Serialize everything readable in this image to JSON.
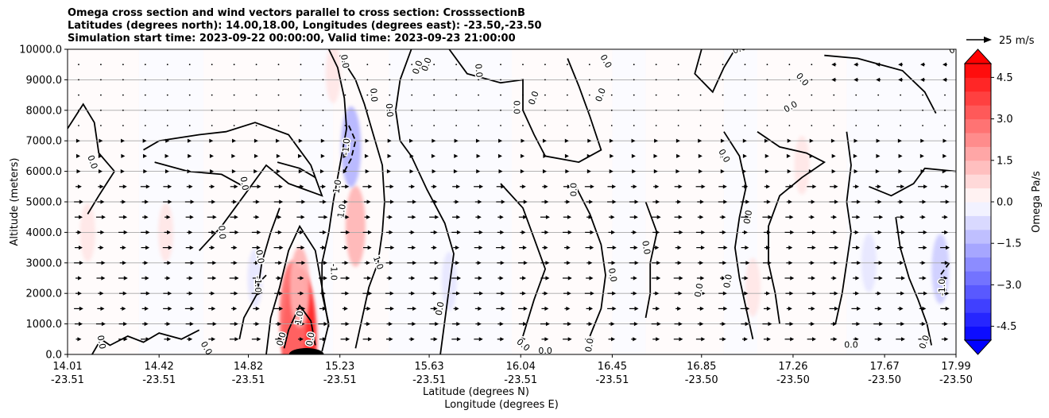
{
  "title_lines": [
    "Omega cross section and wind vectors parallel to cross section: CrosssectionB",
    "Latitudes (degrees north): 14.00,18.00, Longitudes (degrees east): -23.50,-23.50",
    "Simulation start time: 2023-09-22 00:00:00, Valid time: 2023-09-23 21:00:00"
  ],
  "chart_data": {
    "type": "contour",
    "title": "Omega cross section and wind vectors parallel to cross section: CrosssectionB",
    "ylabel": "Altitude (meters)",
    "xlabel_lines": [
      "Latitude (degrees N)",
      "Longitude (degrees E)"
    ],
    "ylim": [
      0,
      10000
    ],
    "yticks": [
      "0.0",
      "1000.0",
      "2000.0",
      "3000.0",
      "4000.0",
      "5000.0",
      "6000.0",
      "7000.0",
      "8000.0",
      "9000.0",
      "10000.0"
    ],
    "ytick_values": [
      0,
      1000,
      2000,
      3000,
      4000,
      5000,
      6000,
      7000,
      8000,
      9000,
      10000
    ],
    "xlim": [
      14.01,
      17.99
    ],
    "xticks": [
      {
        "lat": "14.01",
        "lon": "-23.51",
        "value": 14.01
      },
      {
        "lat": "14.42",
        "lon": "-23.51",
        "value": 14.42
      },
      {
        "lat": "14.82",
        "lon": "-23.51",
        "value": 14.82
      },
      {
        "lat": "15.23",
        "lon": "-23.51",
        "value": 15.23
      },
      {
        "lat": "15.63",
        "lon": "-23.51",
        "value": 15.63
      },
      {
        "lat": "16.04",
        "lon": "-23.51",
        "value": 16.04
      },
      {
        "lat": "16.45",
        "lon": "-23.51",
        "value": 16.45
      },
      {
        "lat": "16.85",
        "lon": "-23.50",
        "value": 16.85
      },
      {
        "lat": "17.26",
        "lon": "-23.50",
        "value": 17.26
      },
      {
        "lat": "17.67",
        "lon": "-23.50",
        "value": 17.67
      },
      {
        "lat": "17.99",
        "lon": "-23.50",
        "value": 17.99
      }
    ],
    "grid": "horizontal",
    "colorbar": {
      "label": "Omega Pa/s",
      "range": [
        -5,
        5
      ],
      "step": 0.5,
      "ticks": [
        "-4.5",
        "−3.0",
        "−1.5",
        "0.0",
        "1.5",
        "3.0",
        "4.5"
      ],
      "tick_values": [
        -4.5,
        -3.0,
        -1.5,
        0.0,
        1.5,
        3.0,
        4.5
      ],
      "low_color": "#0000ff",
      "high_color": "#ff0000",
      "extend": "both"
    },
    "quiver_key": {
      "label": "25 m/s",
      "value": 25
    },
    "contour_labels": [
      "0.0",
      "0.0",
      "0.0",
      "0.0",
      "0.0",
      "0.0",
      "0.0",
      "0.0",
      "0.0",
      "0.0",
      "0.0",
      "0.0",
      "0.0",
      "-1.0",
      "1.0",
      "1.0",
      "1.0",
      "1.0",
      "-1.0",
      "-1.0",
      "0.0",
      "0.0",
      "0.0",
      "0.0",
      "0.0",
      "0.0",
      "0.0",
      "0.0",
      "0.0",
      "0.0",
      "0.0",
      "0.0",
      "0.0",
      "0.0",
      "0.0",
      "0.0",
      "0.0",
      "-1.0",
      "0.0",
      "0.0",
      "0.0",
      "0.0",
      "0.0"
    ],
    "omega_regions": [
      {
        "lat": 15.05,
        "alt": 400,
        "value": 4.5
      },
      {
        "lat": 15.02,
        "alt": 1200,
        "value": 3.0
      },
      {
        "lat": 15.05,
        "alt": 2200,
        "value": 1.5
      },
      {
        "lat": 15.3,
        "alt": 4200,
        "value": 1.5
      },
      {
        "lat": 15.28,
        "alt": 6800,
        "value": -1.5
      },
      {
        "lat": 14.45,
        "alt": 4000,
        "value": 0.5
      },
      {
        "lat": 14.1,
        "alt": 4000,
        "value": 0.5
      },
      {
        "lat": 15.2,
        "alt": 9200,
        "value": 0.5
      },
      {
        "lat": 14.85,
        "alt": 2500,
        "value": -0.5
      },
      {
        "lat": 15.72,
        "alt": 2400,
        "value": -0.5
      },
      {
        "lat": 17.3,
        "alt": 6200,
        "value": 0.5
      },
      {
        "lat": 17.08,
        "alt": 2200,
        "value": 0.5
      },
      {
        "lat": 17.6,
        "alt": 3000,
        "value": -0.5
      },
      {
        "lat": 17.92,
        "alt": 2800,
        "value": -1.0
      }
    ],
    "wind_vector_rows_altitudes": [
      500,
      1000,
      1500,
      2000,
      2500,
      3000,
      3500,
      4000,
      4500,
      5000,
      5500,
      6000,
      6500,
      7000,
      7500,
      8000,
      8500,
      9000,
      9500
    ]
  }
}
